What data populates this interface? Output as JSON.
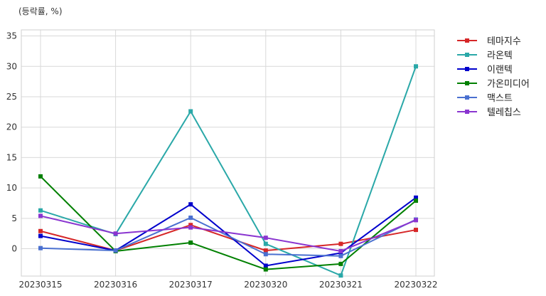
{
  "chart_data": {
    "type": "line",
    "ylabel": "(등락률, %)",
    "categories": [
      "20230315",
      "20230316",
      "20230317",
      "20230320",
      "20230321",
      "20230322"
    ],
    "ylim": [
      -4.5,
      36
    ],
    "yticks": [
      0,
      5,
      10,
      15,
      20,
      25,
      30,
      35
    ],
    "grid": true,
    "legend_position": "outside-top-right",
    "series": [
      {
        "name": "테마지수",
        "color": "#d62728",
        "values": [
          2.9,
          -0.3,
          3.9,
          -0.3,
          0.8,
          3.1
        ]
      },
      {
        "name": "라온텍",
        "color": "#2aa8a8",
        "values": [
          6.3,
          2.4,
          22.6,
          0.8,
          -4.4,
          30.0
        ]
      },
      {
        "name": "이랜텍",
        "color": "#0000cc",
        "values": [
          2.1,
          -0.3,
          7.3,
          -2.8,
          -0.7,
          8.4
        ]
      },
      {
        "name": "가온미디어",
        "color": "#008000",
        "values": [
          11.9,
          -0.4,
          1.0,
          -3.4,
          -2.5,
          7.9
        ]
      },
      {
        "name": "맥스트",
        "color": "#4a70d0",
        "values": [
          0.1,
          -0.3,
          5.1,
          -0.9,
          -1.2,
          4.8
        ]
      },
      {
        "name": "텔레칩스",
        "color": "#8a35d0",
        "values": [
          5.4,
          2.5,
          3.5,
          1.8,
          -0.4,
          4.7
        ]
      }
    ]
  }
}
